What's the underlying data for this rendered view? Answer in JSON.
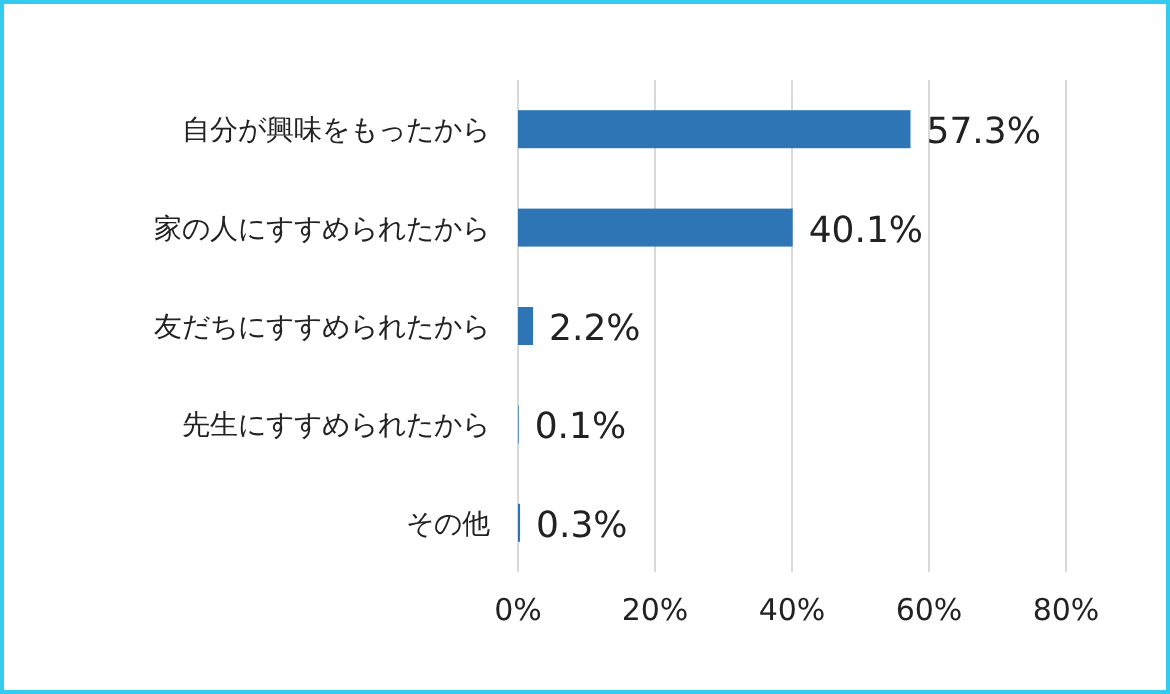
{
  "chart_data": {
    "type": "bar",
    "orientation": "horizontal",
    "categories": [
      "自分が興味をもったから",
      "家の人にすすめられたから",
      "友だちにすすめられたから",
      "先生にすすめられたから",
      "その他"
    ],
    "values": [
      57.3,
      40.1,
      2.2,
      0.1,
      0.3
    ],
    "value_labels": [
      "57.3%",
      "40.1%",
      "2.2%",
      "0.1%",
      "0.3%"
    ],
    "color": "#2e75b6",
    "xlim": [
      0,
      80
    ],
    "xticks": [
      {
        "value": 0,
        "label": "0%"
      },
      {
        "value": 20,
        "label": "20%"
      },
      {
        "value": 40,
        "label": "40%"
      },
      {
        "value": 60,
        "label": "60%"
      },
      {
        "value": 80,
        "label": "80%"
      }
    ],
    "grid": "x"
  }
}
